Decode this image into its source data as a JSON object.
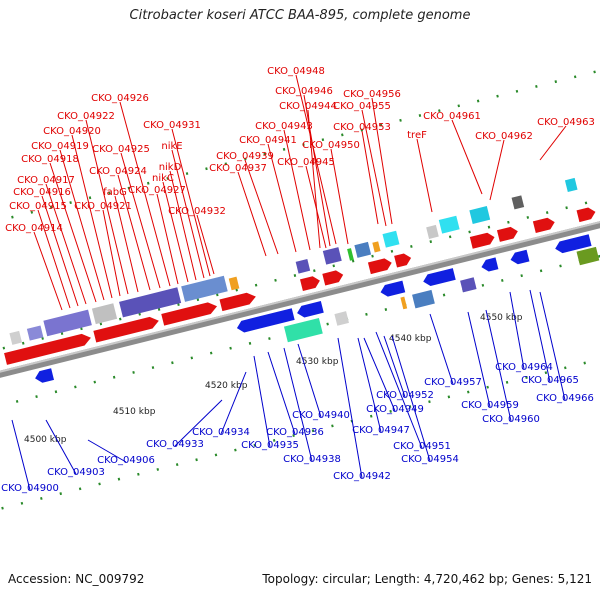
{
  "title": "Citrobacter koseri ATCC BAA-895, complete genome",
  "footer": {
    "accession": "Accession: NC_009792",
    "topology": "Topology: circular; Length: 4,720,462 bp; Genes: 5,121"
  },
  "colors": {
    "forward_label": "#e00000",
    "reverse_label": "#0000cc",
    "backbone": "#888888",
    "tick": "#2a8a2a"
  },
  "scale_labels": [
    "4500 kbp",
    "4510 kbp",
    "4520 kbp",
    "4530 kbp",
    "4540 kbp",
    "4550 kbp"
  ],
  "forward_genes": [
    "CKO_04914",
    "CKO_04915",
    "CKO_04916",
    "CKO_04917",
    "CKO_04918",
    "CKO_04919",
    "CKO_04920",
    "CKO_04921",
    "CKO_04922",
    "fabG",
    "CKO_04924",
    "CKO_04925",
    "CKO_04926",
    "CKO_04927",
    "nikC",
    "nikD",
    "nikE",
    "CKO_04931",
    "CKO_04932",
    "CKO_04937",
    "CKO_04939",
    "CKO_04941",
    "CKO_04943",
    "CKO_04944",
    "CKO_04945",
    "CKO_04946",
    "CKO_04948",
    "CKO_04950",
    "CKO_04953",
    "CKO_04955",
    "CKO_04956",
    "treF",
    "CKO_04961",
    "CKO_04962",
    "CKO_04963"
  ],
  "reverse_genes": [
    "CKO_04900",
    "CKO_04903",
    "CKO_04906",
    "CKO_04933",
    "CKO_04934",
    "CKO_04935",
    "CKO_04936",
    "CKO_04938",
    "CKO_04940",
    "CKO_04942",
    "CKO_04947",
    "CKO_04949",
    "CKO_04951",
    "CKO_04952",
    "CKO_04954",
    "CKO_04957",
    "CKO_04959",
    "CKO_04960",
    "CKO_04964",
    "CKO_04965",
    "CKO_04966"
  ]
}
